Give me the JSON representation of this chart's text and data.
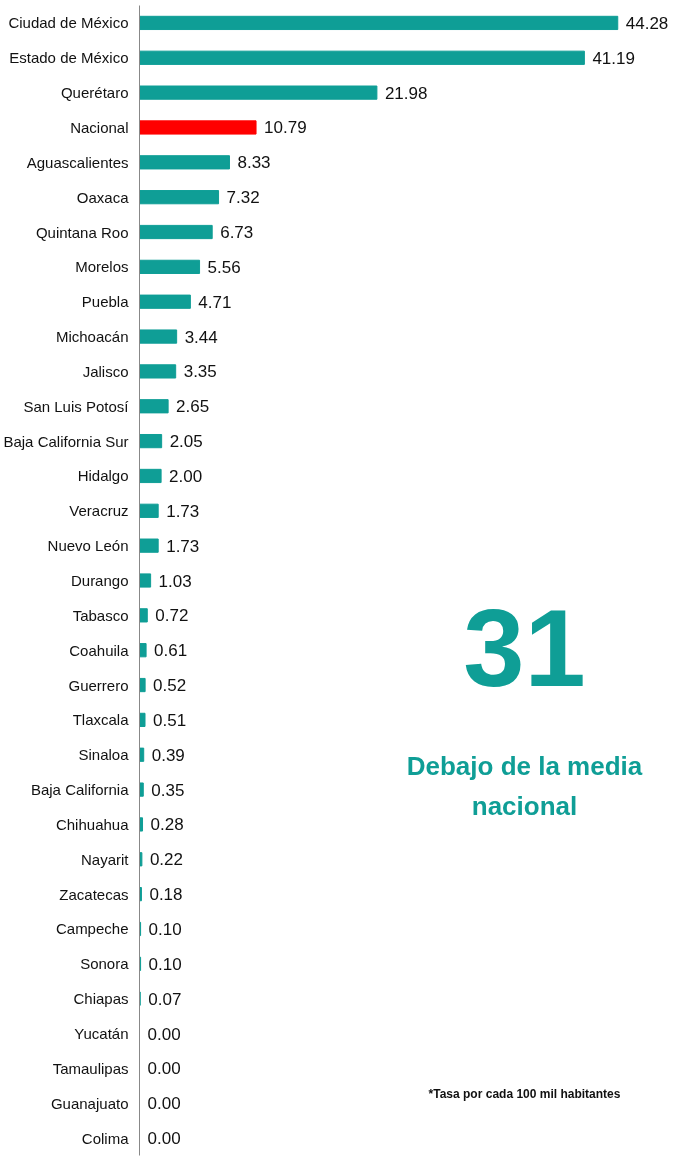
{
  "chart_data": {
    "type": "bar",
    "orientation": "horizontal",
    "data_labels": true,
    "grid": false,
    "categories": [
      "Ciudad de México",
      "Estado de México",
      "Querétaro",
      "Nacional",
      "Aguascalientes",
      "Oaxaca",
      "Quintana Roo",
      "Morelos",
      "Puebla",
      "Michoacán",
      "Jalisco",
      "San Luis Potosí",
      "Baja California Sur",
      "Hidalgo",
      "Veracruz",
      "Nuevo León",
      "Durango",
      "Tabasco",
      "Coahuila",
      "Guerrero",
      "Tlaxcala",
      "Sinaloa",
      "Baja California",
      "Chihuahua",
      "Nayarit",
      "Zacatecas",
      "Campeche",
      "Sonora",
      "Chiapas",
      "Yucatán",
      "Tamaulipas",
      "Guanajuato",
      "Colima"
    ],
    "values": [
      44.28,
      41.19,
      21.98,
      10.79,
      8.33,
      7.32,
      6.73,
      5.56,
      4.71,
      3.44,
      3.35,
      2.65,
      2.05,
      2.0,
      1.73,
      1.73,
      1.03,
      0.72,
      0.61,
      0.52,
      0.51,
      0.39,
      0.35,
      0.28,
      0.22,
      0.18,
      0.1,
      0.1,
      0.07,
      0.0,
      0.0,
      0.0,
      0.0
    ],
    "value_labels": [
      "44.28",
      "41.19",
      "21.98",
      "10.79",
      "8.33",
      "7.32",
      "6.73",
      "5.56",
      "4.71",
      "3.44",
      "3.35",
      "2.65",
      "2.05",
      "2.00",
      "1.73",
      "1.73",
      "1.03",
      "0.72",
      "0.61",
      "0.52",
      "0.51",
      "0.39",
      "0.35",
      "0.28",
      "0.22",
      "0.18",
      "0.10",
      "0.10",
      "0.07",
      "0.00",
      "0.00",
      "0.00",
      "0.00"
    ],
    "colors": [
      "#0f9e96",
      "#0f9e96",
      "#0f9e96",
      "#ff0000",
      "#0f9e96",
      "#0f9e96",
      "#0f9e96",
      "#0f9e96",
      "#0f9e96",
      "#0f9e96",
      "#0f9e96",
      "#0f9e96",
      "#0f9e96",
      "#0f9e96",
      "#0f9e96",
      "#0f9e96",
      "#0f9e96",
      "#0f9e96",
      "#0f9e96",
      "#0f9e96",
      "#0f9e96",
      "#0f9e96",
      "#0f9e96",
      "#0f9e96",
      "#0f9e96",
      "#0f9e96",
      "#0f9e96",
      "#0f9e96",
      "#0f9e96",
      "#0f9e96",
      "#0f9e96",
      "#0f9e96",
      "#0f9e96"
    ],
    "annotations": [
      "31",
      "Debajo de la media nacional",
      "*Tasa por cada 100 mil habitantes"
    ]
  }
}
